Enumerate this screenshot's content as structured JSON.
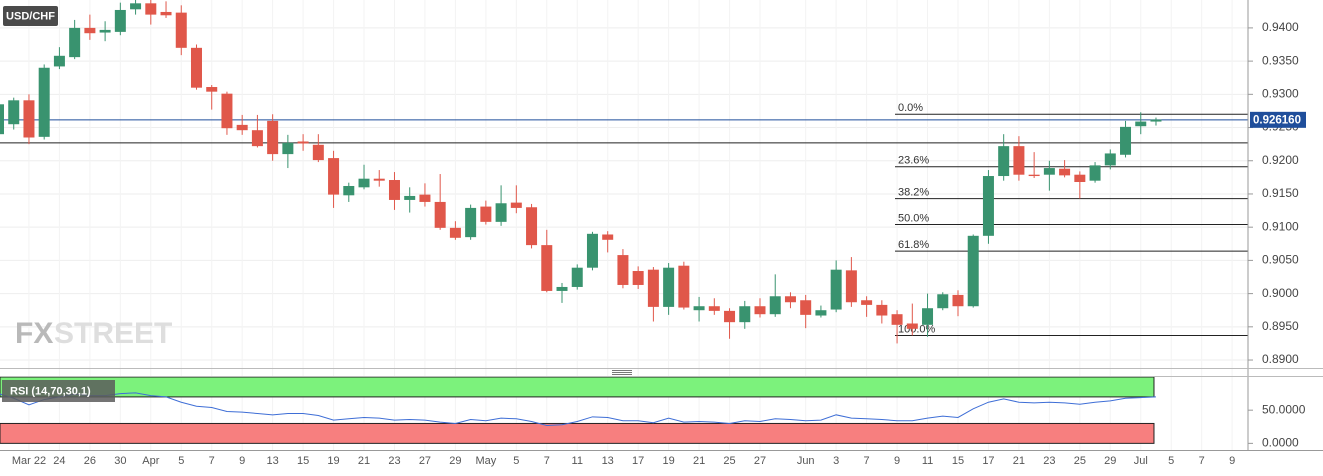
{
  "chart_data": [
    {
      "type": "candlestick",
      "title": "USD/CHF",
      "categories": [
        null,
        null,
        "Mar 22",
        null,
        "24",
        null,
        "26",
        null,
        "30",
        null,
        "Apr",
        null,
        "5",
        null,
        "7",
        null,
        "9",
        null,
        "13",
        null,
        "15",
        null,
        "19",
        null,
        "21",
        null,
        "23",
        null,
        "27",
        null,
        "29",
        null,
        "May",
        null,
        "5",
        null,
        "7",
        null,
        "11",
        null,
        "13",
        null,
        "17",
        null,
        "19",
        null,
        "21",
        null,
        "25",
        null,
        "27",
        null,
        null,
        "Jun",
        null,
        "3",
        null,
        "7",
        null,
        "9",
        null,
        "11",
        null,
        "15",
        null,
        "17",
        null,
        "21",
        null,
        "23",
        null,
        "25",
        null,
        "29",
        null,
        "Jul",
        null,
        "5",
        null,
        "7",
        null,
        "9"
      ],
      "open": [
        0.924,
        0.9255,
        0.9291,
        0.9236,
        0.9342,
        0.9356,
        0.94,
        0.9393,
        0.9394,
        0.9428,
        0.9437,
        0.9424,
        0.9423,
        0.937,
        0.9311,
        0.9301,
        0.9254,
        0.9246,
        0.926,
        0.921,
        0.9229,
        0.9224,
        0.9204,
        0.9148,
        0.916,
        0.9173,
        0.9171,
        0.9141,
        0.9149,
        0.9138,
        0.9099,
        0.9085,
        0.9131,
        0.9108,
        0.9137,
        0.913,
        0.9073,
        0.9004,
        0.901,
        0.9039,
        0.9089,
        0.9058,
        0.9034,
        0.9036,
        0.898,
        0.9042,
        0.8975,
        0.8981,
        0.8974,
        0.8957,
        0.8981,
        0.8969,
        0.8996,
        0.899,
        0.8967,
        0.8976,
        0.9035,
        0.899,
        0.8983,
        0.8969,
        0.8955,
        0.8953,
        0.8978,
        0.8998,
        0.8981,
        0.9087,
        0.9177,
        0.9222,
        0.9179,
        0.9179,
        0.9188,
        0.9179,
        0.917,
        0.9193,
        0.9209,
        0.9252,
        0.9259,
        null,
        null,
        null,
        null,
        null
      ],
      "high": [
        0.93,
        0.9295,
        0.93,
        0.9345,
        0.9371,
        0.9412,
        0.942,
        0.941,
        0.9438,
        0.9442,
        0.9442,
        0.944,
        0.9434,
        0.9375,
        0.9314,
        0.9304,
        0.9269,
        0.9269,
        0.927,
        0.9239,
        0.924,
        0.924,
        0.9215,
        0.9167,
        0.9194,
        0.9186,
        0.9183,
        0.916,
        0.9166,
        0.918,
        0.9109,
        0.9134,
        0.914,
        0.9163,
        0.9163,
        0.9135,
        0.9096,
        0.9016,
        0.9044,
        0.9093,
        0.9094,
        0.9067,
        0.9041,
        0.904,
        0.9046,
        0.9048,
        0.8995,
        0.8993,
        0.8978,
        0.8989,
        0.8993,
        0.9029,
        0.9002,
        0.8998,
        0.8982,
        0.905,
        0.9055,
        0.8996,
        0.899,
        0.8975,
        0.8985,
        0.9,
        0.9002,
        0.9005,
        0.9089,
        0.9186,
        0.924,
        0.9237,
        0.9213,
        0.92,
        0.9201,
        0.9184,
        0.9198,
        0.9217,
        0.926,
        0.9273,
        0.9265,
        null,
        null,
        null,
        null,
        null
      ],
      "low": [
        0.9225,
        0.9247,
        0.9225,
        0.9232,
        0.9338,
        0.9353,
        0.9382,
        0.938,
        0.9389,
        0.942,
        0.9405,
        0.9415,
        0.9359,
        0.9307,
        0.9277,
        0.9239,
        0.9239,
        0.922,
        0.92,
        0.9189,
        0.9215,
        0.9198,
        0.9129,
        0.9138,
        0.9157,
        0.9161,
        0.9126,
        0.9122,
        0.9131,
        0.9096,
        0.9081,
        0.9081,
        0.9104,
        0.9102,
        0.9121,
        0.9068,
        0.9002,
        0.8986,
        0.9006,
        0.9035,
        0.9062,
        0.9008,
        0.9007,
        0.8958,
        0.8968,
        0.8976,
        0.8958,
        0.8968,
        0.8932,
        0.8947,
        0.8964,
        0.8965,
        0.8978,
        0.8948,
        0.8964,
        0.8972,
        0.898,
        0.8965,
        0.8955,
        0.8925,
        0.8937,
        0.8935,
        0.8975,
        0.8966,
        0.8979,
        0.9075,
        0.917,
        0.917,
        0.9174,
        0.9155,
        0.9175,
        0.9143,
        0.9167,
        0.9187,
        0.9205,
        0.924,
        0.9253,
        null,
        null,
        null,
        null,
        null
      ],
      "close": [
        0.9285,
        0.9291,
        0.9235,
        0.934,
        0.9358,
        0.94,
        0.9392,
        0.9397,
        0.9427,
        0.9437,
        0.942,
        0.9419,
        0.937,
        0.931,
        0.9304,
        0.9249,
        0.9246,
        0.9222,
        0.921,
        0.9227,
        0.9226,
        0.9201,
        0.9149,
        0.9162,
        0.9173,
        0.917,
        0.9141,
        0.9147,
        0.9138,
        0.9099,
        0.9084,
        0.9129,
        0.9108,
        0.9136,
        0.9129,
        0.9073,
        0.9004,
        0.901,
        0.9039,
        0.909,
        0.9081,
        0.9013,
        0.9013,
        0.898,
        0.9039,
        0.8979,
        0.8981,
        0.8974,
        0.8957,
        0.8981,
        0.8969,
        0.8996,
        0.8987,
        0.8968,
        0.8975,
        0.9036,
        0.8987,
        0.8983,
        0.8967,
        0.8953,
        0.8947,
        0.8978,
        0.8999,
        0.8981,
        0.9087,
        0.9177,
        0.9222,
        0.9179,
        0.9177,
        0.9189,
        0.9178,
        0.9168,
        0.9193,
        0.9211,
        0.9251,
        0.9259,
        0.9262,
        null,
        null,
        null,
        null,
        null
      ],
      "up_color": "#39936f",
      "down_color": "#e0574a",
      "ylim": [
        0.8888,
        0.9442
      ],
      "yticks": [
        {
          "value": 0.94,
          "label": "0.9400"
        },
        {
          "value": 0.935,
          "label": "0.9350"
        },
        {
          "value": 0.93,
          "label": "0.9300"
        },
        {
          "value": 0.925,
          "label": "0.9250"
        },
        {
          "value": 0.92,
          "label": "0.9200"
        },
        {
          "value": 0.915,
          "label": "0.9150"
        },
        {
          "value": 0.91,
          "label": "0.9100"
        },
        {
          "value": 0.905,
          "label": "0.9050"
        },
        {
          "value": 0.9,
          "label": "0.9000"
        },
        {
          "value": 0.895,
          "label": "0.8950"
        },
        {
          "value": 0.89,
          "label": "0.8900"
        }
      ],
      "grid": true,
      "last_price": {
        "value": 0.92616,
        "label": "0.926160"
      },
      "last_price_color": "#1f4e9b",
      "support_line": 0.9227,
      "fibonacci": [
        {
          "label": "0.0%",
          "value": 0.927
        },
        {
          "label": "23.6%",
          "value": 0.9191
        },
        {
          "label": "38.2%",
          "value": 0.9143
        },
        {
          "label": "50.0%",
          "value": 0.9104
        },
        {
          "label": "61.8%",
          "value": 0.9064
        },
        {
          "label": "100.0%",
          "value": 0.8937
        }
      ]
    },
    {
      "type": "line",
      "title": "RSI (14,70,30,1)",
      "color": "#3e6ed6",
      "values": [
        75,
        68,
        58,
        66,
        70,
        74,
        72,
        72,
        75,
        76,
        72,
        70,
        62,
        56,
        54,
        48,
        47,
        45,
        43,
        45,
        45,
        42,
        35,
        37,
        39,
        38,
        35,
        36,
        35,
        32,
        30,
        36,
        34,
        38,
        37,
        33,
        27,
        28,
        33,
        40,
        39,
        34,
        34,
        31,
        38,
        32,
        33,
        32,
        30,
        34,
        33,
        37,
        36,
        34,
        35,
        43,
        38,
        37,
        36,
        34,
        34,
        38,
        41,
        39,
        52,
        62,
        67,
        62,
        61,
        62,
        61,
        59,
        62,
        64,
        68,
        69,
        70,
        null,
        null,
        null,
        null,
        null
      ],
      "ylim": [
        -10,
        100
      ],
      "yticks": [
        {
          "value": 50,
          "label": "50.0000"
        },
        {
          "value": 0,
          "label": "0.0000"
        }
      ],
      "zones": [
        {
          "from": 70,
          "to": 100,
          "color": "#7cf27c"
        },
        {
          "from": 0,
          "to": 30,
          "color": "#f77f7f"
        }
      ]
    }
  ],
  "watermark": {
    "fx": "FX",
    "street": "STREET"
  }
}
